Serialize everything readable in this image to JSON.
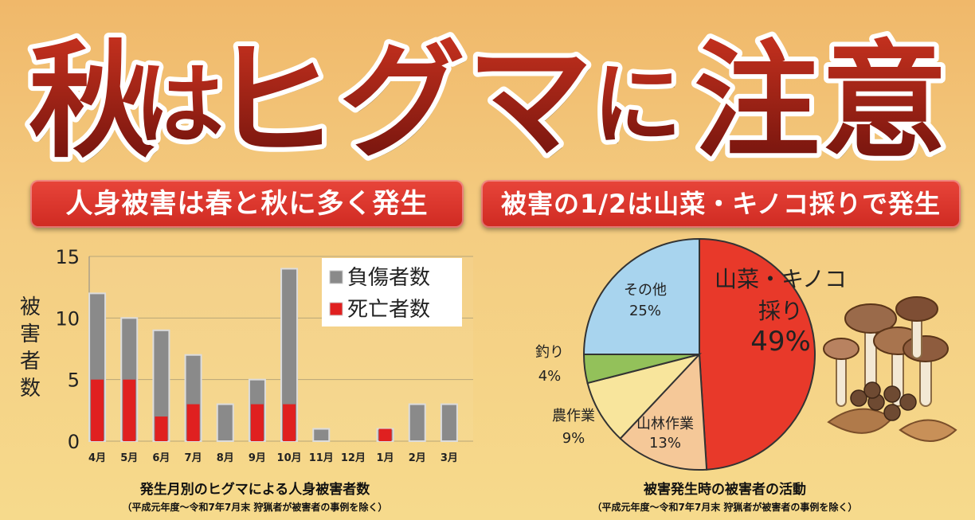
{
  "headline": {
    "chars": [
      "秋",
      "は",
      "ヒ",
      "グ",
      "マ",
      "に",
      "注",
      "意"
    ]
  },
  "left_panel": {
    "banner": "人身被害は春と秋に多く発生",
    "caption_main": "発生月別のヒグマによる人身被害者数",
    "caption_sub": "（平成元年度～令和7年7月末 狩猟者が被害者の事例を除く）"
  },
  "right_panel": {
    "banner": "被害の1/2は山菜・キノコ採りで発生",
    "caption_main": "被害発生時の被害者の活動",
    "caption_sub": "（平成元年度～令和7年7月末 狩猟者が被害者の事例を除く）"
  },
  "chart_data": [
    {
      "type": "bar",
      "stacked": false,
      "categories": [
        "4月",
        "5月",
        "6月",
        "7月",
        "8月",
        "9月",
        "10月",
        "11月",
        "12月",
        "1月",
        "2月",
        "3月"
      ],
      "series": [
        {
          "name": "負傷者数",
          "color": "#8a8a8a",
          "values": [
            12,
            10,
            9,
            7,
            3,
            5,
            14,
            1,
            0,
            1,
            3,
            3
          ]
        },
        {
          "name": "死亡者数",
          "color": "#e02020",
          "values": [
            5,
            5,
            2,
            3,
            0,
            3,
            3,
            0,
            0,
            1,
            0,
            0
          ]
        }
      ],
      "ylabel_chars": [
        "被",
        "害",
        "者",
        "数"
      ],
      "yticks": [
        0,
        5,
        10,
        15
      ],
      "ylim": [
        0,
        15
      ],
      "grid": true,
      "legend_position": "top-right"
    },
    {
      "type": "pie",
      "slices": [
        {
          "label_lines": [
            "山菜・キノコ",
            "採り"
          ],
          "percent_label": "49%",
          "value": 49,
          "color": "#e8392a"
        },
        {
          "label_lines": [
            "山林作業"
          ],
          "percent_label": "13%",
          "value": 13,
          "color": "#f5c898"
        },
        {
          "label_lines": [
            "農作業"
          ],
          "percent_label": "9%",
          "value": 9,
          "color": "#f8e59c"
        },
        {
          "label_lines": [
            "釣り"
          ],
          "percent_label": "4%",
          "value": 4,
          "color": "#93c15a"
        },
        {
          "label_lines": [
            "その他"
          ],
          "percent_label": "25%",
          "value": 25,
          "color": "#a8d4ee"
        }
      ]
    }
  ]
}
